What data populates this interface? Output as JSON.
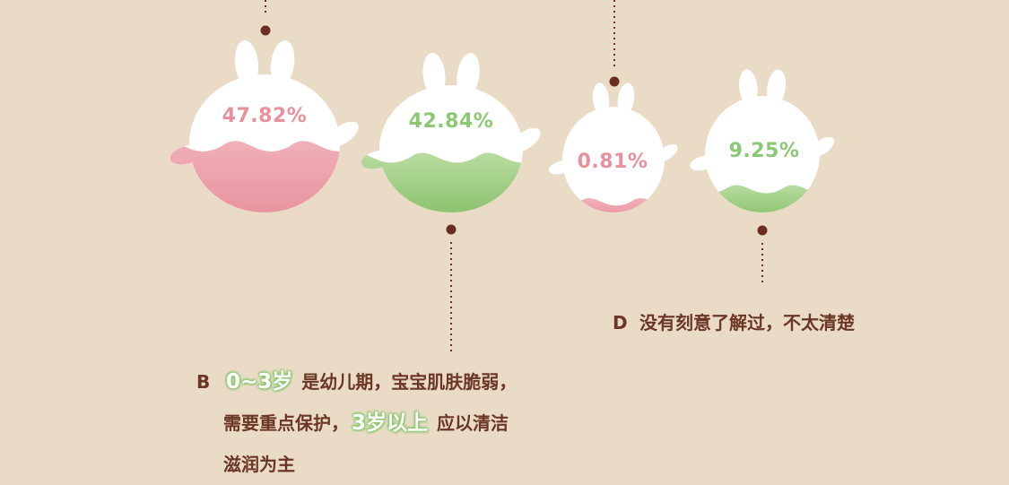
{
  "colors": {
    "background": "#e9dbc6",
    "pink": "#e8919d",
    "green": "#8cc873",
    "brown": "#6b3626",
    "dot": "#6b2e20"
  },
  "bunnies": [
    {
      "label": "47.82%",
      "color": "pink",
      "fill_level": 0.48
    },
    {
      "label": "42.84%",
      "color": "green",
      "fill_level": 0.43
    },
    {
      "label": "0.81%",
      "color": "pink",
      "fill_level": 0.1
    },
    {
      "label": "9.25%",
      "color": "green",
      "fill_level": 0.2
    }
  ],
  "options": {
    "b": {
      "letter": "B",
      "hl1": "0~3岁",
      "text1": "是幼儿期，宝宝肌肤脆弱，",
      "text2a": "需要重点保护，",
      "hl2": "3岁以上",
      "text2b": "应以清洁",
      "text3": "滋润为主"
    },
    "d": {
      "letter": "D",
      "text": "没有刻意了解过，不太清楚"
    }
  }
}
